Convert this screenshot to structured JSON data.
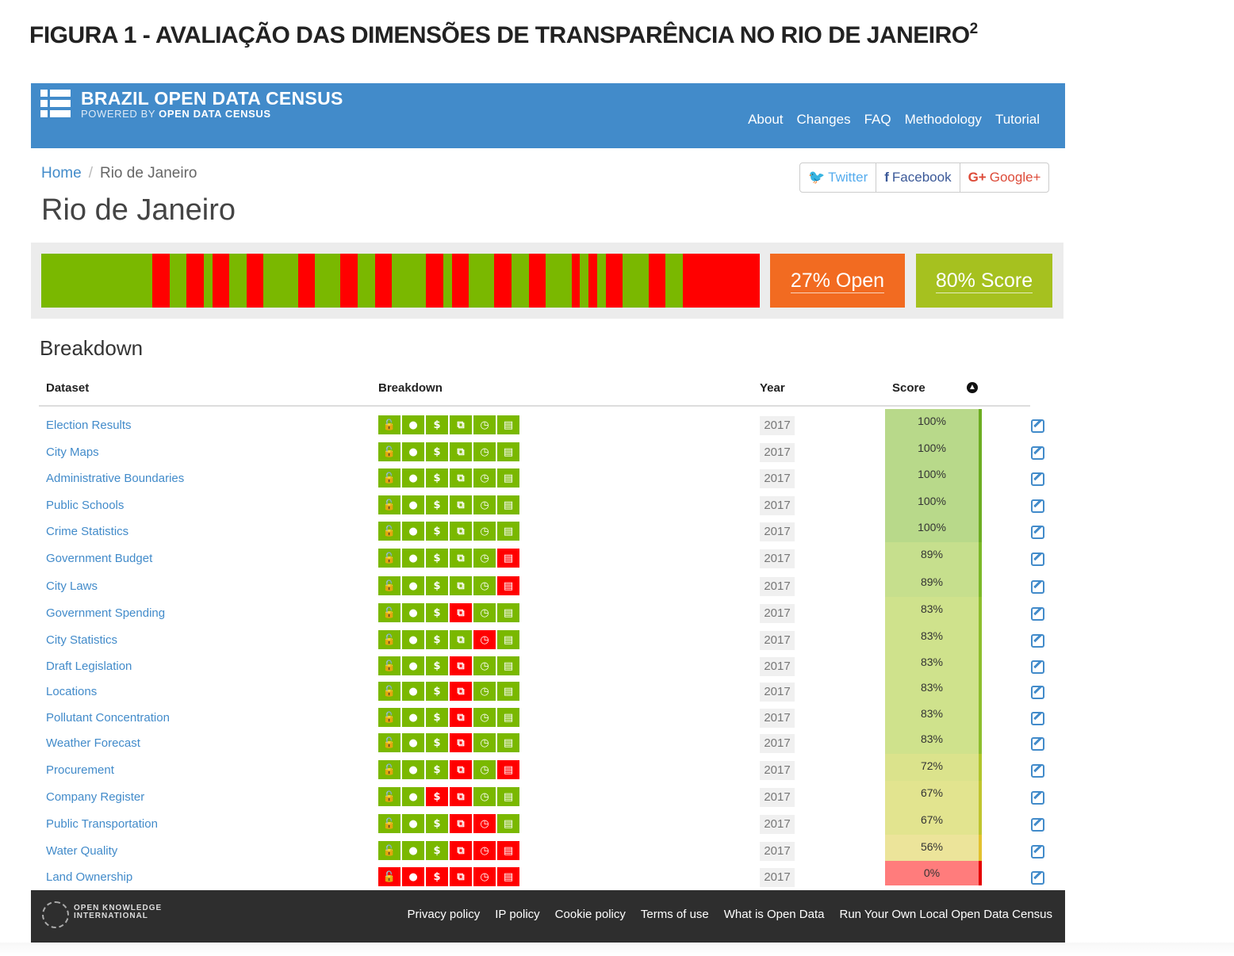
{
  "figure_title": "FIGURA 1 - AVALIAÇÃO DAS DIMENSÕES DE TRANSPARÊNCIA NO RIO DE JANEIRO",
  "figure_title_sup": "2",
  "header": {
    "brand": "BRAZIL OPEN DATA CENSUS",
    "powered_prefix": "POWERED BY",
    "powered_name": "OPEN DATA CENSUS",
    "nav": [
      "About",
      "Changes",
      "FAQ",
      "Methodology",
      "Tutorial"
    ]
  },
  "breadcrumb": {
    "home": "Home",
    "separator": "/",
    "current": "Rio de Janeiro"
  },
  "page_title": "Rio de Janeiro",
  "share": {
    "twitter": "Twitter",
    "facebook": "Facebook",
    "google": "Google+",
    "google_icon": "G+"
  },
  "summary": {
    "open_label": "27% Open",
    "score_label": "80% Score",
    "bar_segments": [
      [
        "g",
        13
      ],
      [
        "r",
        2
      ],
      [
        "g",
        2
      ],
      [
        "r",
        2
      ],
      [
        "g",
        1
      ],
      [
        "r",
        2
      ],
      [
        "g",
        2
      ],
      [
        "r",
        2
      ],
      [
        "g",
        4
      ],
      [
        "r",
        2
      ],
      [
        "g",
        3
      ],
      [
        "r",
        2
      ],
      [
        "g",
        2
      ],
      [
        "r",
        2
      ],
      [
        "g",
        4
      ],
      [
        "r",
        2
      ],
      [
        "g",
        1
      ],
      [
        "r",
        2
      ],
      [
        "g",
        3
      ],
      [
        "r",
        2
      ],
      [
        "g",
        2
      ],
      [
        "r",
        2
      ],
      [
        "g",
        3
      ],
      [
        "r",
        1
      ],
      [
        "g",
        1
      ],
      [
        "r",
        1
      ],
      [
        "g",
        1
      ],
      [
        "r",
        2
      ],
      [
        "g",
        3
      ],
      [
        "r",
        2
      ],
      [
        "g",
        2
      ],
      [
        "r",
        9
      ]
    ],
    "colors": {
      "green": "#7ab800",
      "red": "#ff0000",
      "open": "#f26b21",
      "score": "#a6c11f"
    }
  },
  "breakdown": {
    "heading": "Breakdown",
    "columns": {
      "dataset": "Dataset",
      "breakdown": "Breakdown",
      "year": "Year",
      "score": "Score"
    },
    "icon_names": [
      "unlock-icon",
      "eye-icon",
      "dollar-icon",
      "copy-icon",
      "clock-icon",
      "keyboard-icon"
    ],
    "icon_glyphs": [
      "🔓",
      "●",
      "$",
      "⧉",
      "◷",
      "▤"
    ],
    "rows": [
      {
        "name": "Election Results",
        "flags": "gggggg",
        "year": "2017",
        "score": "100%"
      },
      {
        "name": "City Maps",
        "flags": "gggggg",
        "year": "2017",
        "score": "100%"
      },
      {
        "name": "Administrative Boundaries",
        "flags": "gggggg",
        "year": "2017",
        "score": "100%"
      },
      {
        "name": "Public Schools",
        "flags": "gggggg",
        "year": "2017",
        "score": "100%"
      },
      {
        "name": "Crime Statistics",
        "flags": "gggggg",
        "year": "2017",
        "score": "100%"
      },
      {
        "name": "Government Budget",
        "flags": "gggggr",
        "year": "2017",
        "score": "89%"
      },
      {
        "name": "City Laws",
        "flags": "gggggr",
        "year": "2017",
        "score": "89%"
      },
      {
        "name": "Government Spending",
        "flags": "gggrgg",
        "year": "2017",
        "score": "83%"
      },
      {
        "name": "City Statistics",
        "flags": "ggggrg",
        "year": "2017",
        "score": "83%"
      },
      {
        "name": "Draft Legislation",
        "flags": "gggrgg",
        "year": "2017",
        "score": "83%"
      },
      {
        "name": "Locations",
        "flags": "gggrgg",
        "year": "2017",
        "score": "83%"
      },
      {
        "name": "Pollutant Concentration",
        "flags": "gggrgg",
        "year": "2017",
        "score": "83%"
      },
      {
        "name": "Weather Forecast",
        "flags": "gggrgg",
        "year": "2017",
        "score": "83%"
      },
      {
        "name": "Procurement",
        "flags": "gggrgr",
        "year": "2017",
        "score": "72%"
      },
      {
        "name": "Company Register",
        "flags": "ggrrgg",
        "year": "2017",
        "score": "67%"
      },
      {
        "name": "Public Transportation",
        "flags": "gggrrg",
        "year": "2017",
        "score": "67%"
      },
      {
        "name": "Water Quality",
        "flags": "gggrrr",
        "year": "2017",
        "score": "56%"
      },
      {
        "name": "Land Ownership",
        "flags": "rrrrrr",
        "year": "2017",
        "score": "0%"
      }
    ]
  },
  "footer": {
    "org_line1": "OPEN KNOWLEDGE",
    "org_line2": "INTERNATIONAL",
    "links": [
      "Privacy policy",
      "IP policy",
      "Cookie policy",
      "Terms of use",
      "What is Open Data",
      "Run Your Own Local Open Data Census"
    ]
  }
}
